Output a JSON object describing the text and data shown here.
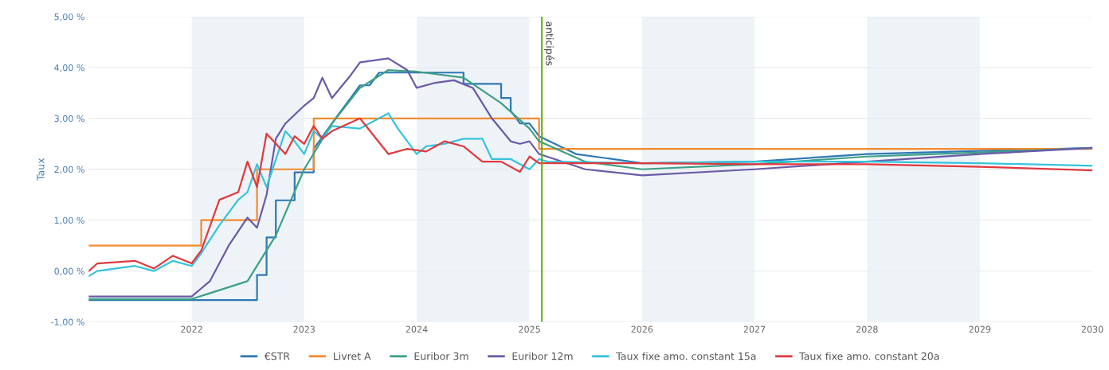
{
  "chart_data": {
    "type": "line",
    "ylabel": "Taux",
    "xlim": [
      "2021-02-01",
      "2030-01-01"
    ],
    "xticks": [
      "2022",
      "2023",
      "2024",
      "2025",
      "2026",
      "2027",
      "2028",
      "2029",
      "2030"
    ],
    "ylim": [
      -1,
      5
    ],
    "yticks": [
      {
        "value": -1,
        "label": "-1,00 %"
      },
      {
        "value": 0,
        "label": "0,00 %"
      },
      {
        "value": 1,
        "label": "1,00 %"
      },
      {
        "value": 2,
        "label": "2,00 %"
      },
      {
        "value": 3,
        "label": "3,00 %"
      },
      {
        "value": 4,
        "label": "4,00 %"
      },
      {
        "value": 5,
        "label": "5,00 %"
      }
    ],
    "grid": "y",
    "legend": "bottom",
    "marker": "none",
    "line_style": "solid",
    "bands": [
      {
        "axis": "x",
        "from": "2022",
        "to": "2023",
        "color": "#eef3f7"
      },
      {
        "axis": "x",
        "from": "2024",
        "to": "2025",
        "color": "#eef3f7"
      },
      {
        "axis": "x",
        "from": "2026",
        "to": "2027",
        "color": "#eef3f7"
      },
      {
        "axis": "x",
        "from": "2028",
        "to": "2029",
        "color": "#eef3f7"
      }
    ],
    "ref_lines": [
      {
        "axis": "x",
        "value": "2025-02-10",
        "label": "anticipés",
        "color": "#55b400"
      }
    ],
    "series": [
      {
        "name": "€STR",
        "color": "#2f78b5",
        "x": [
          "2021-02",
          "2022-08",
          "2022-08",
          "2022-09",
          "2022-09",
          "2022-10",
          "2022-10",
          "2022-12",
          "2022-12",
          "2023-02",
          "2023-02",
          "2023-04",
          "2023-05",
          "2023-06",
          "2023-07",
          "2023-08",
          "2023-09",
          "2024-06",
          "2024-06",
          "2024-10",
          "2024-10",
          "2024-11",
          "2024-11",
          "2024-12",
          "2025-01",
          "2025-02",
          "2025-06",
          "2026-01",
          "2027-01",
          "2028-01",
          "2029-01",
          "2030-01"
        ],
        "values": [
          -0.57,
          -0.57,
          -0.08,
          -0.08,
          0.66,
          0.66,
          1.39,
          1.39,
          1.94,
          1.94,
          2.4,
          2.9,
          3.15,
          3.4,
          3.65,
          3.65,
          3.9,
          3.9,
          3.68,
          3.68,
          3.4,
          3.4,
          3.15,
          2.9,
          2.9,
          2.65,
          2.3,
          2.12,
          2.15,
          2.3,
          2.36,
          2.42
        ]
      },
      {
        "name": "Livret A",
        "color": "#f28a2e",
        "x": [
          "2021-02",
          "2022-02",
          "2022-02",
          "2022-08",
          "2022-08",
          "2023-02",
          "2023-02",
          "2025-02",
          "2025-02",
          "2030-01"
        ],
        "values": [
          0.5,
          0.5,
          1.0,
          1.0,
          2.0,
          2.0,
          3.0,
          3.0,
          2.4,
          2.4
        ]
      },
      {
        "name": "Euribor 3m",
        "color": "#3d9f86",
        "x": [
          "2021-02",
          "2022-01",
          "2022-07",
          "2022-10",
          "2023-01",
          "2023-04",
          "2023-07",
          "2023-10",
          "2024-01",
          "2024-06",
          "2024-10",
          "2025-01",
          "2025-02",
          "2025-07",
          "2026-01",
          "2027-01",
          "2028-01",
          "2029-01",
          "2030-01"
        ],
        "values": [
          -0.55,
          -0.55,
          -0.2,
          0.7,
          2.0,
          2.9,
          3.6,
          3.95,
          3.92,
          3.8,
          3.3,
          2.8,
          2.55,
          2.15,
          2.0,
          2.1,
          2.25,
          2.33,
          2.42
        ]
      },
      {
        "name": "Euribor 12m",
        "color": "#6a5aa8",
        "x": [
          "2021-02",
          "2022-01",
          "2022-03",
          "2022-05",
          "2022-07",
          "2022-08",
          "2022-09",
          "2022-10",
          "2022-11",
          "2023-01",
          "2023-02",
          "2023-03",
          "2023-04",
          "2023-06",
          "2023-07",
          "2023-10",
          "2023-12",
          "2024-01",
          "2024-03",
          "2024-05",
          "2024-07",
          "2024-09",
          "2024-11",
          "2024-12",
          "2025-01",
          "2025-02",
          "2025-07",
          "2026-01",
          "2027-01",
          "2028-01",
          "2029-01",
          "2030-01"
        ],
        "values": [
          -0.5,
          -0.5,
          -0.2,
          0.5,
          1.05,
          0.85,
          1.5,
          2.6,
          2.9,
          3.25,
          3.4,
          3.8,
          3.4,
          3.85,
          4.1,
          4.18,
          3.95,
          3.6,
          3.7,
          3.75,
          3.6,
          3.0,
          2.55,
          2.5,
          2.55,
          2.3,
          2.0,
          1.88,
          2.0,
          2.15,
          2.3,
          2.42
        ]
      },
      {
        "name": "Taux fixe amo. constant 15a",
        "color": "#35c3dd",
        "x": [
          "2021-02",
          "2021-03",
          "2021-07",
          "2021-09",
          "2021-11",
          "2022-01",
          "2022-02",
          "2022-04",
          "2022-06",
          "2022-07",
          "2022-08",
          "2022-09",
          "2022-11",
          "2022-12",
          "2023-01",
          "2023-02",
          "2023-03",
          "2023-04",
          "2023-07",
          "2023-10",
          "2023-11",
          "2024-01",
          "2024-02",
          "2024-04",
          "2024-06",
          "2024-08",
          "2024-09",
          "2024-11",
          "2025-01",
          "2025-02",
          "2025-03",
          "2026-01",
          "2027-01",
          "2028-01",
          "2029-01",
          "2030-01"
        ],
        "values": [
          -0.1,
          0.0,
          0.1,
          0.0,
          0.2,
          0.1,
          0.35,
          0.9,
          1.4,
          1.55,
          2.1,
          1.65,
          2.75,
          2.55,
          2.3,
          2.75,
          2.6,
          2.85,
          2.8,
          3.1,
          2.8,
          2.3,
          2.45,
          2.5,
          2.6,
          2.6,
          2.2,
          2.2,
          2.0,
          2.2,
          2.15,
          2.12,
          2.15,
          2.15,
          2.12,
          2.07
        ]
      },
      {
        "name": "Taux fixe amo. constant 20a",
        "color": "#e0393e",
        "x": [
          "2021-02",
          "2021-03",
          "2021-07",
          "2021-09",
          "2021-11",
          "2022-01",
          "2022-02",
          "2022-04",
          "2022-06",
          "2022-07",
          "2022-08",
          "2022-09",
          "2022-11",
          "2022-12",
          "2023-01",
          "2023-02",
          "2023-03",
          "2023-04",
          "2023-07",
          "2023-10",
          "2023-12",
          "2024-02",
          "2024-04",
          "2024-06",
          "2024-08",
          "2024-10",
          "2024-12",
          "2025-01",
          "2025-02",
          "2025-03",
          "2026-01",
          "2027-01",
          "2028-01",
          "2029-01",
          "2030-01"
        ],
        "values": [
          0.0,
          0.15,
          0.2,
          0.05,
          0.3,
          0.15,
          0.4,
          1.4,
          1.55,
          2.15,
          1.65,
          2.7,
          2.3,
          2.65,
          2.5,
          2.85,
          2.6,
          2.75,
          3.0,
          2.3,
          2.4,
          2.35,
          2.55,
          2.45,
          2.15,
          2.15,
          1.95,
          2.25,
          2.12,
          2.12,
          2.12,
          2.1,
          2.1,
          2.05,
          1.98
        ]
      }
    ]
  }
}
